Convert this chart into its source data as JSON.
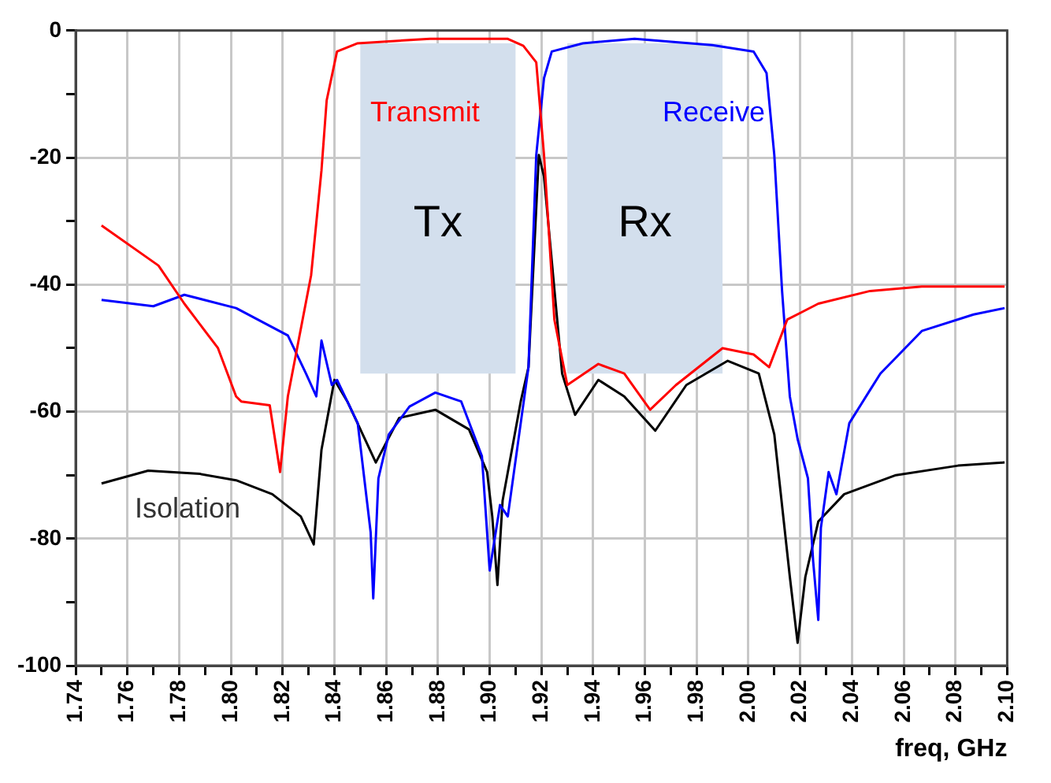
{
  "chart_data": {
    "type": "line",
    "xlabel": "freq, GHz",
    "xlim": [
      1.74,
      2.1
    ],
    "xticks": [
      1.74,
      {
        "value": 1.75,
        "label": null
      },
      1.76,
      {
        "value": 1.77,
        "label": null
      },
      1.78,
      {
        "value": 1.79,
        "label": null
      },
      "1.80",
      {
        "value": 1.81,
        "label": null
      },
      1.82,
      {
        "value": 1.83,
        "label": null
      },
      1.84,
      {
        "value": 1.85,
        "label": null
      },
      1.86,
      {
        "value": 1.87,
        "label": null
      },
      1.88,
      {
        "value": 1.89,
        "label": null
      },
      "1.90",
      {
        "value": 1.91,
        "label": null
      },
      1.92,
      {
        "value": 1.93,
        "label": null
      },
      1.94,
      {
        "value": 1.95,
        "label": null
      },
      1.96,
      {
        "value": 1.97,
        "label": null
      },
      1.98,
      {
        "value": 1.99,
        "label": null
      },
      "2.00",
      {
        "value": 2.01,
        "label": null
      },
      2.02,
      {
        "value": 2.03,
        "label": null
      },
      2.04,
      {
        "value": 2.05,
        "label": null
      },
      2.06,
      {
        "value": 2.07,
        "label": null
      },
      2.08,
      {
        "value": 2.09,
        "label": null
      },
      "2.10"
    ],
    "ylim": [
      -100,
      0
    ],
    "yticks": [
      -100,
      {
        "value": -90,
        "label": null
      },
      -80,
      {
        "value": -70,
        "label": null
      },
      -60,
      {
        "value": -50,
        "label": null
      },
      -40,
      {
        "value": -30,
        "label": null
      },
      -20,
      {
        "value": -10,
        "label": null
      },
      0
    ],
    "grid": true,
    "legend": false,
    "marker": "none",
    "line_style": "solid",
    "bands": [
      {
        "axis": "x",
        "from": 1.85,
        "to": 1.91,
        "label": "Tx",
        "color": "#d3dfed"
      },
      {
        "axis": "x",
        "from": 1.93,
        "to": 1.99,
        "label": "Rx",
        "color": "#d3dfed"
      }
    ],
    "series": [
      {
        "name": "Transmit",
        "color": "#ff0000",
        "x": [
          1.75,
          1.772,
          1.782,
          1.795,
          1.802,
          1.804,
          1.815,
          1.819,
          1.822,
          1.831,
          1.835,
          1.837,
          1.841,
          1.849,
          1.877,
          1.907,
          1.913,
          1.918,
          1.921,
          1.925,
          1.93,
          1.942,
          1.952,
          1.962,
          1.972,
          1.99,
          2.002,
          2.008,
          2.015,
          2.027,
          2.047,
          2.067,
          2.099
        ],
        "values": [
          -30.7,
          -37,
          -43,
          -50,
          -57.6,
          -58.4,
          -59,
          -69.5,
          -57.6,
          -38.5,
          -22,
          -11,
          -3.3,
          -2,
          -1.3,
          -1.3,
          -2.4,
          -5,
          -19.6,
          -45.5,
          -55.8,
          -52.5,
          -54,
          -59.7,
          -55.8,
          -50,
          -51,
          -53,
          -45.5,
          -43,
          -41,
          -40.3,
          -40.3
        ]
      },
      {
        "name": "Receive",
        "color": "#0000ff",
        "x": [
          1.75,
          1.77,
          1.782,
          1.802,
          1.822,
          1.829,
          1.833,
          1.835,
          1.839,
          1.841,
          1.849,
          1.854,
          1.855,
          1.857,
          1.861,
          1.869,
          1.879,
          1.889,
          1.897,
          1.9,
          1.904,
          1.907,
          1.912,
          1.915,
          1.918,
          1.921,
          1.924,
          1.936,
          1.956,
          1.986,
          2.002,
          2.007,
          2.01,
          2.013,
          2.016,
          2.019,
          2.023,
          2.025,
          2.027,
          2.028,
          2.031,
          2.034,
          2.039,
          2.047,
          2.051,
          2.067,
          2.087,
          2.099
        ],
        "values": [
          -42.4,
          -43.4,
          -41.6,
          -43.7,
          -48,
          -54,
          -57.6,
          -48.8,
          -55.8,
          -55,
          -61.8,
          -79,
          -89.4,
          -70.5,
          -63.6,
          -59.2,
          -57,
          -58.4,
          -67,
          -85,
          -74.7,
          -76.5,
          -61.8,
          -53,
          -19.6,
          -7.5,
          -3.3,
          -2,
          -1.3,
          -2.3,
          -3.3,
          -6.7,
          -19.6,
          -41,
          -57.6,
          -64.3,
          -70.5,
          -83.5,
          -92.8,
          -78.3,
          -69.5,
          -73,
          -61.8,
          -56.6,
          -54,
          -47.3,
          -44.7,
          -43.7
        ]
      },
      {
        "name": "Isolation",
        "color": "#000000",
        "x": [
          1.75,
          1.768,
          1.788,
          1.802,
          1.816,
          1.827,
          1.832,
          1.835,
          1.84,
          1.845,
          1.856,
          1.865,
          1.879,
          1.892,
          1.899,
          1.901,
          1.903,
          1.905,
          1.912,
          1.915,
          1.919,
          1.921,
          1.928,
          1.933,
          1.942,
          1.952,
          1.964,
          1.976,
          1.992,
          2.004,
          2.01,
          2.016,
          2.019,
          2.022,
          2.027,
          2.037,
          2.057,
          2.081,
          2.099
        ],
        "values": [
          -71.3,
          -69.3,
          -69.8,
          -70.8,
          -73,
          -76.5,
          -80.9,
          -66,
          -55,
          -58.4,
          -68,
          -61,
          -59.7,
          -62.8,
          -69.5,
          -76.5,
          -87.3,
          -74,
          -58.4,
          -53,
          -19.6,
          -23,
          -54,
          -60.5,
          -55,
          -57.6,
          -63,
          -55.8,
          -52,
          -54,
          -63.6,
          -86,
          -96.4,
          -86,
          -77.3,
          -73,
          -70,
          -68.5,
          -68
        ]
      }
    ]
  }
}
